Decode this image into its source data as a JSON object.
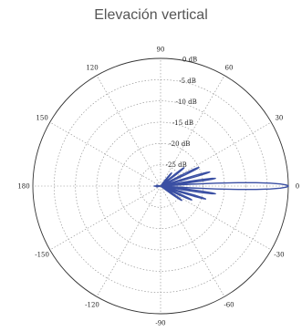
{
  "title": "Elevación vertical",
  "chart_data": {
    "type": "polar",
    "title": "Elevación vertical",
    "radial_unit": "dB",
    "radial_range": [
      -30,
      0
    ],
    "radial_ticks": [
      {
        "value": 0,
        "label": "0 dB"
      },
      {
        "value": -5,
        "label": "-5 dB"
      },
      {
        "value": -10,
        "label": "-10 dB"
      },
      {
        "value": -15,
        "label": "-15 dB"
      },
      {
        "value": -20,
        "label": "-20 dB"
      },
      {
        "value": -25,
        "label": "-25 dB"
      }
    ],
    "angle_ticks": [
      {
        "value": 0,
        "label": "0"
      },
      {
        "value": 30,
        "label": "30"
      },
      {
        "value": 60,
        "label": "60"
      },
      {
        "value": 90,
        "label": "90"
      },
      {
        "value": 120,
        "label": "120"
      },
      {
        "value": 150,
        "label": "150"
      },
      {
        "value": 180,
        "label": "180"
      },
      {
        "value": -150,
        "label": "-150"
      },
      {
        "value": -120,
        "label": "-120"
      },
      {
        "value": -90,
        "label": "-90"
      },
      {
        "value": -60,
        "label": "-60"
      },
      {
        "value": -30,
        "label": "-30"
      }
    ],
    "grid": true,
    "series": [
      {
        "color": "#3a4fa3",
        "lobes": [
          {
            "angle": 0,
            "peak_db": 0,
            "half_width": 4
          },
          {
            "angle": 8,
            "peak_db": -17,
            "half_width": 2
          },
          {
            "angle": 16,
            "peak_db": -18,
            "half_width": 2
          },
          {
            "angle": 26,
            "peak_db": -20,
            "half_width": 2.5
          },
          {
            "angle": 38,
            "peak_db": -23,
            "half_width": 2.5
          },
          {
            "angle": 50,
            "peak_db": -26,
            "half_width": 3
          },
          {
            "angle": -8,
            "peak_db": -17,
            "half_width": 2
          },
          {
            "angle": -16,
            "peak_db": -19,
            "half_width": 2
          },
          {
            "angle": -24,
            "peak_db": -22,
            "half_width": 2.5
          },
          {
            "angle": -34,
            "peak_db": -24,
            "half_width": 3
          },
          {
            "angle": 180,
            "peak_db": -28.5,
            "half_width": 3
          },
          {
            "angle": 170,
            "peak_db": -29,
            "half_width": 3
          },
          {
            "angle": -170,
            "peak_db": -29,
            "half_width": 3
          }
        ]
      }
    ]
  }
}
